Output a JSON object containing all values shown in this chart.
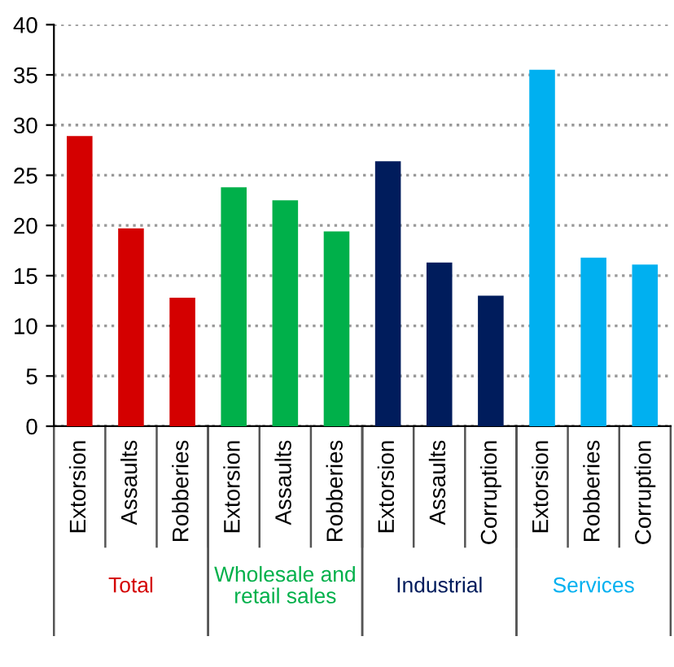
{
  "chart_data": {
    "type": "bar",
    "categories": [
      "Extorsion",
      "Assaults",
      "Robberies",
      "Extorsion",
      "Assaults",
      "Robberies",
      "Extorsion",
      "Assaults",
      "Corruption",
      "Extorsion",
      "Robberies",
      "Corruption"
    ],
    "series": [
      {
        "name": "Total",
        "color": "#d40000",
        "values": [
          28.9,
          19.7,
          12.8,
          null,
          null,
          null,
          null,
          null,
          null,
          null,
          null,
          null
        ]
      },
      {
        "name": "Wholesale and\nretail sales",
        "color": "#00b04a",
        "values": [
          null,
          null,
          null,
          23.8,
          22.5,
          19.4,
          null,
          null,
          null,
          null,
          null,
          null
        ]
      },
      {
        "name": "Industrial",
        "color": "#001c5c",
        "values": [
          null,
          null,
          null,
          null,
          null,
          null,
          26.4,
          16.3,
          13.0,
          null,
          null,
          null
        ]
      },
      {
        "name": "Services",
        "color": "#00b0f0",
        "values": [
          null,
          null,
          null,
          null,
          null,
          null,
          null,
          null,
          null,
          35.5,
          16.8,
          16.1
        ]
      }
    ],
    "ylim": [
      0,
      40
    ],
    "yticks": [
      0,
      5,
      10,
      15,
      20,
      25,
      30,
      35,
      40
    ],
    "grid": "y",
    "legend": false
  }
}
